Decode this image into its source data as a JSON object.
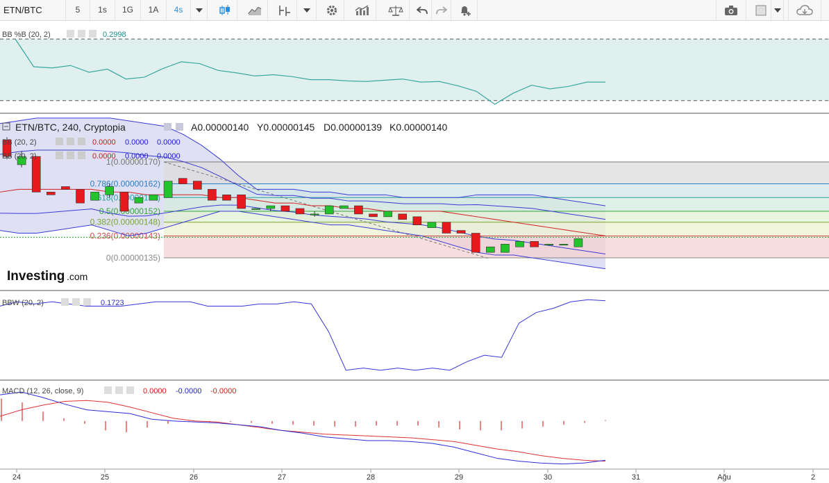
{
  "toolbar": {
    "symbol": "ETN/BTC",
    "intervals": [
      "5",
      "1s",
      "1G",
      "1A",
      "4s"
    ],
    "active_interval": "4s",
    "icons": [
      "candles-icon",
      "line-chart-icon",
      "indicators-icon",
      "dropdown-icon",
      "settings-icon",
      "compare-icon",
      "scale-icon",
      "undo-icon",
      "redo-icon",
      "alert-icon",
      "camera-icon",
      "color-square-icon",
      "cloud-icon"
    ]
  },
  "colors": {
    "up": "#22c42b",
    "down": "#e8191c",
    "bb_fill": "#d9dbf2",
    "bb_line": "#3b3bd6",
    "bb_mid": "#d33030",
    "pctb_fill": "#dff0ef",
    "pctb_line": "#3aa8a0",
    "fib_grey": "#d6d6d6",
    "fib_green": "#dff0d8",
    "fib_red": "#f3c8c8"
  },
  "panels": {
    "pctb": {
      "label": "BB %B (20, 2)",
      "value": "0.2998"
    },
    "main": {
      "title": "ETN/BTC, 240, Cryptopia",
      "ohlc": [
        "A0.00000140",
        "Y0.00000145",
        "D0.00000139",
        "K0.00000140"
      ],
      "bb1": {
        "label": "BB (20, 2)",
        "values": [
          "0.0000",
          "0.0000",
          "0.0000"
        ]
      },
      "bb2": {
        "label": "BB (20, 2)",
        "values": [
          "0.0000",
          "0.0000",
          "0.0000"
        ]
      }
    },
    "bbw": {
      "label": "BBW (20, 2)",
      "value": "0.1723"
    },
    "macd": {
      "label": "MACD (12, 26, close, 9)",
      "values": [
        "0.0000",
        "-0.0000",
        "-0.0000"
      ]
    }
  },
  "logo": {
    "brand": "Investing",
    "suffix": ".com"
  },
  "chart_data": {
    "type": "candlestick",
    "x_axis_ticks": [
      "24",
      "25",
      "26",
      "27",
      "28",
      "29",
      "30",
      "31",
      "Ağu",
      "2"
    ],
    "price_scale": {
      "min": 1.3e-06,
      "max": 1.8e-06
    },
    "fibonacci": [
      {
        "ratio": "1",
        "price": "0.00000170",
        "value": 1.7e-06
      },
      {
        "ratio": "0.786",
        "price": "0.00000162",
        "value": 1.62e-06
      },
      {
        "ratio": "0.618",
        "price": "0.00000157",
        "value": 1.57e-06
      },
      {
        "ratio": "0.5",
        "price": "0.00000152",
        "value": 1.52e-06
      },
      {
        "ratio": "0.382",
        "price": "0.00000148",
        "value": 1.48e-06
      },
      {
        "ratio": "0.236",
        "price": "0.00000143",
        "value": 1.43e-06
      },
      {
        "ratio": "0",
        "price": "0.00000135",
        "value": 1.35e-06
      }
    ],
    "candles": [
      [
        1.78e-06,
        1.79e-06,
        1.71e-06,
        1.72e-06
      ],
      [
        1.69e-06,
        1.74e-06,
        1.68e-06,
        1.72e-06
      ],
      [
        1.72e-06,
        1.72e-06,
        1.59e-06,
        1.59e-06
      ],
      [
        1.59e-06,
        1.59e-06,
        1.58e-06,
        1.58e-06
      ],
      [
        1.61e-06,
        1.61e-06,
        1.6e-06,
        1.6e-06
      ],
      [
        1.6e-06,
        1.6e-06,
        1.55e-06,
        1.55e-06
      ],
      [
        1.56e-06,
        1.59e-06,
        1.56e-06,
        1.59e-06
      ],
      [
        1.58e-06,
        1.62e-06,
        1.57e-06,
        1.61e-06
      ],
      [
        1.59e-06,
        1.59e-06,
        1.52e-06,
        1.52e-06
      ],
      [
        1.55e-06,
        1.57e-06,
        1.55e-06,
        1.57e-06
      ],
      [
        1.56e-06,
        1.58e-06,
        1.56e-06,
        1.58e-06
      ],
      [
        1.57e-06,
        1.63e-06,
        1.57e-06,
        1.63e-06
      ],
      [
        1.64e-06,
        1.64e-06,
        1.62e-06,
        1.62e-06
      ],
      [
        1.63e-06,
        1.63e-06,
        1.6e-06,
        1.6e-06
      ],
      [
        1.6e-06,
        1.6e-06,
        1.56e-06,
        1.56e-06
      ],
      [
        1.58e-06,
        1.58e-06,
        1.56e-06,
        1.56e-06
      ],
      [
        1.58e-06,
        1.58e-06,
        1.53e-06,
        1.53e-06
      ],
      [
        1.53e-06,
        1.53e-06,
        1.53e-06,
        1.53e-06
      ],
      [
        1.53e-06,
        1.54e-06,
        1.52e-06,
        1.54e-06
      ],
      [
        1.54e-06,
        1.54e-06,
        1.52e-06,
        1.52e-06
      ],
      [
        1.53e-06,
        1.53e-06,
        1.51e-06,
        1.51e-06
      ],
      [
        1.51e-06,
        1.52e-06,
        1.5e-06,
        1.51e-06
      ],
      [
        1.51e-06,
        1.54e-06,
        1.51e-06,
        1.54e-06
      ],
      [
        1.53e-06,
        1.54e-06,
        1.53e-06,
        1.54e-06
      ],
      [
        1.54e-06,
        1.54e-06,
        1.51e-06,
        1.51e-06
      ],
      [
        1.51e-06,
        1.51e-06,
        1.5e-06,
        1.5e-06
      ],
      [
        1.5e-06,
        1.52e-06,
        1.5e-06,
        1.52e-06
      ],
      [
        1.51e-06,
        1.51e-06,
        1.49e-06,
        1.49e-06
      ],
      [
        1.5e-06,
        1.5e-06,
        1.47e-06,
        1.47e-06
      ],
      [
        1.46e-06,
        1.48e-06,
        1.46e-06,
        1.48e-06
      ],
      [
        1.48e-06,
        1.48e-06,
        1.44e-06,
        1.44e-06
      ],
      [
        1.45e-06,
        1.45e-06,
        1.44e-06,
        1.44e-06
      ],
      [
        1.44e-06,
        1.44e-06,
        1.37e-06,
        1.37e-06
      ],
      [
        1.37e-06,
        1.39e-06,
        1.37e-06,
        1.39e-06
      ],
      [
        1.37e-06,
        1.4e-06,
        1.37e-06,
        1.4e-06
      ],
      [
        1.39e-06,
        1.41e-06,
        1.39e-06,
        1.41e-06
      ],
      [
        1.41e-06,
        1.41e-06,
        1.39e-06,
        1.39e-06
      ],
      [
        1.4e-06,
        1.4e-06,
        1.4e-06,
        1.4e-06
      ],
      [
        1.4e-06,
        1.4e-06,
        1.4e-06,
        1.4e-06
      ],
      [
        1.39e-06,
        1.42e-06,
        1.39e-06,
        1.42e-06
      ]
    ],
    "bb_upper": [
      1.84e-06,
      1.85e-06,
      1.86e-06,
      1.86e-06,
      1.86e-06,
      1.86e-06,
      1.86e-06,
      1.85e-06,
      1.84e-06,
      1.83e-06,
      1.8e-06,
      1.76e-06,
      1.71e-06,
      1.65e-06,
      1.6e-06,
      1.6e-06,
      1.6e-06,
      1.59e-06,
      1.59e-06,
      1.58e-06,
      1.58e-06,
      1.58e-06,
      1.57e-06,
      1.57e-06,
      1.57e-06,
      1.57e-06,
      1.58e-06,
      1.58e-06,
      1.58e-06,
      1.58e-06,
      1.57e-06,
      1.56e-06,
      1.55e-06,
      1.54e-06
    ],
    "bb_middle": [
      1.59e-06,
      1.6e-06,
      1.6e-06,
      1.6e-06,
      1.6e-06,
      1.6e-06,
      1.59e-06,
      1.59e-06,
      1.58e-06,
      1.58e-06,
      1.58e-06,
      1.58e-06,
      1.57e-06,
      1.57e-06,
      1.56e-06,
      1.55e-06,
      1.55e-06,
      1.54e-06,
      1.54e-06,
      1.53e-06,
      1.53e-06,
      1.52e-06,
      1.52e-06,
      1.52e-06,
      1.52e-06,
      1.51e-06,
      1.5e-06,
      1.49e-06,
      1.48e-06,
      1.47e-06,
      1.46e-06,
      1.45e-06,
      1.44e-06,
      1.43e-06
    ],
    "bb_lower": [
      1.45e-06,
      1.44e-06,
      1.44e-06,
      1.45e-06,
      1.46e-06,
      1.47e-06,
      1.45e-06,
      1.43e-06,
      1.44e-06,
      1.46e-06,
      1.48e-06,
      1.5e-06,
      1.52e-06,
      1.52e-06,
      1.51e-06,
      1.5e-06,
      1.49e-06,
      1.48e-06,
      1.47e-06,
      1.47e-06,
      1.46e-06,
      1.45e-06,
      1.44e-06,
      1.43e-06,
      1.41e-06,
      1.39e-06,
      1.37e-06,
      1.36e-06,
      1.36e-06,
      1.35e-06,
      1.34e-06,
      1.33e-06,
      1.32e-06,
      1.31e-06
    ],
    "pctb_band": [
      0.0,
      1.0
    ],
    "pctb_range": [
      -0.15,
      1.25
    ],
    "pctb": [
      1.0,
      0.55,
      0.53,
      0.57,
      0.46,
      0.51,
      0.35,
      0.38,
      0.52,
      0.63,
      0.6,
      0.49,
      0.45,
      0.4,
      0.42,
      0.39,
      0.34,
      0.34,
      0.32,
      0.31,
      0.33,
      0.35,
      0.3,
      0.31,
      0.24,
      0.15,
      -0.06,
      0.12,
      0.25,
      0.19,
      0.23,
      0.3,
      0.3
    ],
    "bbw_range": [
      0.1,
      0.5
    ],
    "bbw": [
      0.44,
      0.46,
      0.45,
      0.46,
      0.45,
      0.44,
      0.44,
      0.44,
      0.45,
      0.46,
      0.46,
      0.46,
      0.44,
      0.44,
      0.44,
      0.45,
      0.45,
      0.46,
      0.45,
      0.32,
      0.14,
      0.15,
      0.14,
      0.15,
      0.14,
      0.15,
      0.14,
      0.18,
      0.21,
      0.2,
      0.36,
      0.41,
      0.43,
      0.46,
      0.47,
      0.465
    ],
    "macd_range": [
      -0.5,
      0.4
    ],
    "macd_line": [
      0.28,
      0.31,
      0.25,
      0.18,
      0.12,
      0.1,
      0.08,
      0.02,
      0.0,
      -0.01,
      -0.02,
      -0.04,
      -0.06,
      -0.1,
      -0.13,
      -0.17,
      -0.19,
      -0.21,
      -0.21,
      -0.22,
      -0.24,
      -0.28,
      -0.34,
      -0.4,
      -0.43,
      -0.45,
      -0.46,
      -0.45,
      -0.42
    ],
    "macd_signal": [
      0.05,
      0.12,
      0.17,
      0.21,
      0.22,
      0.2,
      0.15,
      0.09,
      0.03,
      0.0,
      -0.01,
      -0.04,
      -0.07,
      -0.1,
      -0.12,
      -0.14,
      -0.15,
      -0.16,
      -0.17,
      -0.18,
      -0.2,
      -0.22,
      -0.26,
      -0.3,
      -0.33,
      -0.37,
      -0.4,
      -0.42,
      -0.43
    ],
    "macd_hist": [
      0.24,
      0.2,
      0.1,
      0.03,
      -0.03,
      -0.1,
      -0.12,
      -0.07,
      -0.03,
      -0.01,
      -0.01,
      -0.01,
      -0.02,
      -0.03,
      -0.04,
      -0.05,
      -0.06,
      -0.06,
      -0.05,
      -0.05,
      -0.05,
      -0.07,
      -0.09,
      -0.1,
      -0.1,
      -0.08,
      -0.06,
      -0.04,
      -0.02,
      0.01
    ]
  }
}
